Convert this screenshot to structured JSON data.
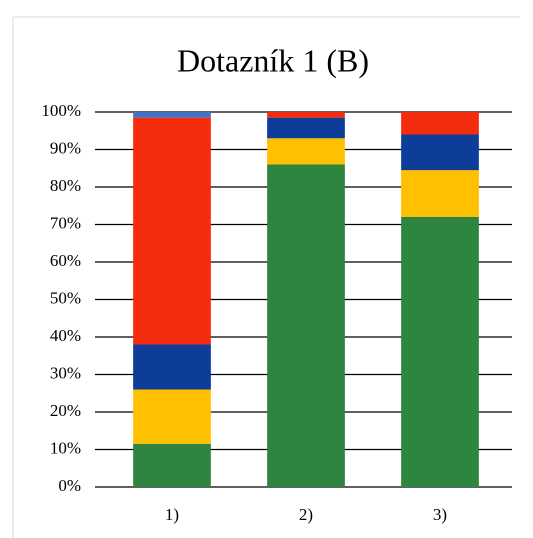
{
  "chart_data": {
    "type": "stacked-bar",
    "title": "Dotazník 1 (B)",
    "categories": [
      "1)",
      "2)",
      "3)"
    ],
    "series": [
      {
        "color": "#2e8540",
        "values": [
          11.5,
          86,
          72
        ]
      },
      {
        "color": "#ffc000",
        "values": [
          14.5,
          7,
          12.5
        ]
      },
      {
        "color": "#0d3d99",
        "values": [
          12,
          5.5,
          9.5
        ]
      },
      {
        "color": "#f52d0f",
        "values": [
          60.5,
          1.5,
          6
        ]
      },
      {
        "color": "#4472c4",
        "values": [
          1.5,
          0,
          0
        ]
      }
    ],
    "ylim": [
      0,
      100
    ],
    "yticks": [
      {
        "value": 0,
        "label": "0%"
      },
      {
        "value": 10,
        "label": "10%"
      },
      {
        "value": 20,
        "label": "20%"
      },
      {
        "value": 30,
        "label": "30%"
      },
      {
        "value": 40,
        "label": "40%"
      },
      {
        "value": 50,
        "label": "50%"
      },
      {
        "value": 60,
        "label": "60%"
      },
      {
        "value": 70,
        "label": "70%"
      },
      {
        "value": 80,
        "label": "80%"
      },
      {
        "value": 90,
        "label": "90%"
      },
      {
        "value": 100,
        "label": "100%"
      }
    ],
    "grid": true
  }
}
